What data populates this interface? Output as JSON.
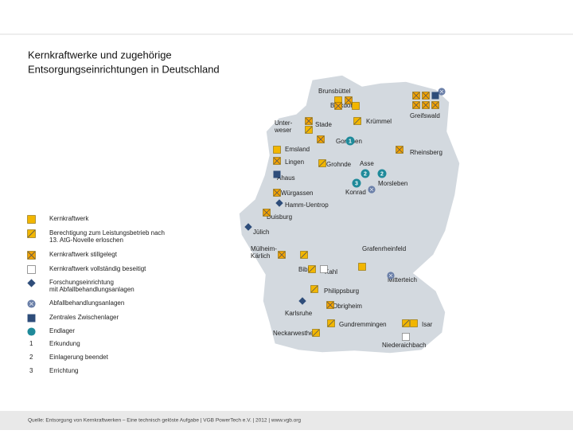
{
  "title": {
    "lines": [
      "Kernkraftwerke und zugehörige",
      "Entsorgungseinrichtungen in Deutschland"
    ]
  },
  "legend": {
    "items": [
      {
        "lines": [
          "Kernkraftwerk"
        ]
      },
      {
        "lines": [
          "Berechtigung zum Leistungsbetrieb nach",
          "13. AtG-Novelle erloschen"
        ]
      },
      {
        "lines": [
          "Kernkraftwerk stillgelegt"
        ]
      },
      {
        "lines": [
          "Kernkraftwerk vollständig beseitigt"
        ]
      },
      {
        "lines": [
          "Forschungseinrichtung",
          "mit Abfallbehandlungsanlagen"
        ]
      },
      {
        "lines": [
          "Abfallbehandlungsanlagen"
        ]
      },
      {
        "lines": [
          "Zentrales Zwischenlager"
        ]
      },
      {
        "lines": [
          "Endlager"
        ]
      }
    ],
    "stages": [
      {
        "number": 1,
        "label": "Erkundung"
      },
      {
        "number": 2,
        "label": "Einlagerung beendet"
      },
      {
        "number": 3,
        "label": "Errichtung"
      }
    ]
  },
  "map": {
    "sites": [
      {
        "lines": [
          "Brunsbüttel"
        ]
      },
      {
        "lines": [
          "Brokdorf"
        ]
      },
      {
        "lines": [
          "Greifswald"
        ]
      },
      {
        "lines": [
          "Krümmel"
        ]
      },
      {
        "lines": [
          "Stade"
        ]
      },
      {
        "lines": [
          "Unter-",
          "weser"
        ]
      },
      {
        "lines": [
          "Gorleben"
        ]
      },
      {
        "lines": [
          "Emsland"
        ]
      },
      {
        "lines": [
          "Rheinsberg"
        ]
      },
      {
        "lines": [
          "Lingen"
        ]
      },
      {
        "lines": [
          "Grohnde"
        ]
      },
      {
        "lines": [
          "Asse"
        ]
      },
      {
        "lines": [
          "Ahaus"
        ]
      },
      {
        "lines": [
          "Morsleben"
        ]
      },
      {
        "lines": [
          "Konrad"
        ]
      },
      {
        "lines": [
          "Würgassen"
        ]
      },
      {
        "lines": [
          "Hamm-Uentrop"
        ]
      },
      {
        "lines": [
          "Duisburg"
        ]
      },
      {
        "lines": [
          "Jülich"
        ]
      },
      {
        "lines": [
          "Mülheim-",
          "Kärlich"
        ]
      },
      {
        "lines": [
          "Grafenrheinfeld"
        ]
      },
      {
        "lines": [
          "Biblis"
        ]
      },
      {
        "lines": [
          "Kahl"
        ]
      },
      {
        "lines": [
          "Mitterteich"
        ]
      },
      {
        "lines": [
          "Philippsburg"
        ]
      },
      {
        "lines": [
          "Obrigheim"
        ]
      },
      {
        "lines": [
          "Karlsruhe"
        ]
      },
      {
        "lines": [
          "Gundremmingen"
        ]
      },
      {
        "lines": [
          "Isar"
        ]
      },
      {
        "lines": [
          "Neckarwestheim"
        ]
      },
      {
        "lines": [
          "Niederaichbach"
        ]
      }
    ],
    "stage_markers": [
      1,
      2,
      2,
      3
    ]
  },
  "source": "Quelle: Entsorgung von Kernkraftwerken – Eine technisch gelöste Aufgabe | VGB PowerTech e.V. | 2012 | www.vgb.org"
}
